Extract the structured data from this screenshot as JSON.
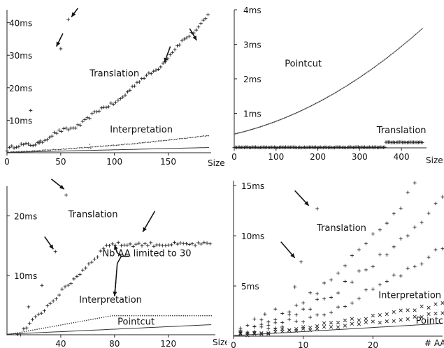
{
  "chart_data": [
    {
      "type": "scatter",
      "xlabel": "Size",
      "ylabel": "",
      "xlim": [
        0,
        190
      ],
      "ylim": [
        0,
        44
      ],
      "x_ticks": [
        {
          "v": 0,
          "label": "0"
        },
        {
          "v": 50,
          "label": "50"
        },
        {
          "v": 100,
          "label": "100"
        },
        {
          "v": 150,
          "label": "150"
        }
      ],
      "y_ticks": [
        {
          "v": 10,
          "label": "10ms"
        },
        {
          "v": 20,
          "label": "20ms"
        },
        {
          "v": 30,
          "label": "30ms"
        },
        {
          "v": 40,
          "label": "40ms"
        }
      ],
      "series": [
        {
          "name": "Translation",
          "marker": "plus",
          "gen": "curve",
          "from": 0,
          "to": 188,
          "step": 2.2,
          "k": [
            0.95,
            0.063,
            0.00085
          ],
          "jitter": 0.5,
          "steps": 1,
          "outliers": [
            [
              57,
              41
            ],
            [
              50,
              32
            ],
            [
              22,
              13
            ],
            [
              30,
              3
            ]
          ]
        },
        {
          "name": "Interpretation",
          "marker": "dot",
          "gen": "curve",
          "from": 0,
          "to": 188,
          "step": 1.5,
          "k": [
            0.2,
            0.014,
            7e-05
          ],
          "jitter": 0.1,
          "outliers": [
            [
              76,
              1.5
            ],
            [
              77,
              2.6
            ],
            [
              78,
              1.4
            ]
          ]
        },
        {
          "name": "Pointcut",
          "marker": "line",
          "gen": "curve",
          "from": 0,
          "to": 188,
          "step": 4,
          "k": [
            0.1,
            0.008,
            0
          ]
        }
      ],
      "annotations": [
        {
          "text": "Translation",
          "x": 100,
          "y": 23.5
        },
        {
          "text": "Interpretation",
          "x": 125,
          "y": 6.2
        }
      ],
      "arrows": [
        [
          66,
          44.5,
          60,
          41.8
        ],
        [
          52,
          36.7,
          46,
          32.7
        ],
        [
          152,
          32.7,
          146.5,
          27.8
        ],
        [
          170,
          38.2,
          176.5,
          34.6
        ]
      ]
    },
    {
      "type": "scatter",
      "xlabel": "Size",
      "ylabel": "",
      "xlim": [
        0,
        460
      ],
      "ylim": [
        0,
        4
      ],
      "x_ticks": [
        {
          "v": 0,
          "label": "0"
        },
        {
          "v": 100,
          "label": "100"
        },
        {
          "v": 200,
          "label": "200"
        },
        {
          "v": 300,
          "label": "300"
        },
        {
          "v": 400,
          "label": "400"
        }
      ],
      "y_ticks": [
        {
          "v": 1,
          "label": "1ms"
        },
        {
          "v": 2,
          "label": "2ms"
        },
        {
          "v": 3,
          "label": "3ms"
        },
        {
          "v": 4,
          "label": "4ms"
        }
      ],
      "series": [
        {
          "name": "Pointcut",
          "marker": "dot",
          "gen": "curve",
          "from": 0,
          "to": 452,
          "step": 2.6,
          "k": [
            0.4,
            0.00281,
            8.85e-06
          ]
        },
        {
          "name": "Translation",
          "marker": "plus",
          "gen": "piece",
          "from": 0,
          "to": 452,
          "step": 3,
          "split": 362,
          "low": 0.015,
          "high": 0.16,
          "jitter": 0.008
        }
      ],
      "annotations": [
        {
          "text": "Pointcut",
          "x": 165,
          "y": 2.35
        },
        {
          "text": "Translation",
          "x": 400,
          "y": 0.42
        }
      ],
      "arrows": []
    },
    {
      "type": "scatter",
      "xlabel": "Size",
      "ylabel": "",
      "xlim": [
        0,
        155
      ],
      "ylim": [
        0,
        25
      ],
      "x_ticks": [
        {
          "v": 40,
          "label": "40"
        },
        {
          "v": 80,
          "label": "80"
        },
        {
          "v": 120,
          "label": "120"
        }
      ],
      "y_ticks": [
        {
          "v": 10,
          "label": "10ms"
        },
        {
          "v": 20,
          "label": "20ms"
        }
      ],
      "series": [
        {
          "name": "Translation",
          "marker": "plus",
          "gen": "piece",
          "from": 8,
          "to": 152,
          "step": 2.2,
          "split": 74,
          "slope": [
            -2.1,
            0.23
          ],
          "high": 15.2,
          "jitter": 0.35,
          "outliers": [
            [
              44,
              23.5
            ],
            [
              36,
              14
            ],
            [
              26,
              8.3
            ],
            [
              16,
              4.7
            ]
          ]
        },
        {
          "name": "Interpretation",
          "marker": "dot",
          "gen": "piece",
          "from": 0,
          "to": 152,
          "step": 1.6,
          "split": 78,
          "slope": [
            0,
            0.041
          ],
          "high": 3.2
        },
        {
          "name": "Pointcut",
          "marker": "line",
          "gen": "curve",
          "from": 0,
          "to": 152,
          "step": 4,
          "k": [
            0.1,
            0.0105,
            0
          ]
        }
      ],
      "annotations": [
        {
          "text": "Translation",
          "x": 64,
          "y": 19.8
        },
        {
          "text": "Nb AA limited to 30",
          "x": 104,
          "y": 13.2
        },
        {
          "text": "Interpretation",
          "x": 77,
          "y": 5.4
        },
        {
          "text": "Pointcut",
          "x": 96,
          "y": 1.7
        }
      ],
      "arrows": [
        [
          33,
          26.2,
          42.5,
          24.5
        ],
        [
          28,
          16.5,
          34.5,
          14.4
        ],
        [
          110,
          20.8,
          101,
          17.3
        ]
      ],
      "annotation_lines": [
        [
          [
            91,
            13.2
          ],
          [
            85,
            13.2
          ],
          [
            82,
            13.8
          ],
          [
            80,
            15.1
          ]
        ],
        [
          [
            85,
            13.2
          ],
          [
            82,
            12
          ],
          [
            81,
            9
          ],
          [
            80,
            6.5
          ]
        ]
      ]
    },
    {
      "type": "scatter",
      "xlabel": "# AA",
      "ylabel": "",
      "xlim": [
        0,
        30
      ],
      "ylim": [
        0,
        15.5
      ],
      "x_ticks": [
        {
          "v": 0,
          "label": "0"
        },
        {
          "v": 10,
          "label": "10"
        },
        {
          "v": 20,
          "label": "20"
        }
      ],
      "y_ticks": [
        {
          "v": 5,
          "label": "5ms"
        },
        {
          "v": 10,
          "label": "10ms"
        },
        {
          "v": 15,
          "label": "15ms"
        }
      ],
      "series": [
        {
          "name": "Translation",
          "marker": "plus",
          "gen": "curve",
          "from": 1,
          "to": 30,
          "step": 1,
          "k": [
            0.3,
            0.14,
            0.0114
          ],
          "jitter": 0.4,
          "copies": 3,
          "spread": [
            0.6,
            1.28
          ],
          "outliers": [
            [
              12,
              12.7
            ],
            [
              9.7,
              7.4
            ],
            [
              8.8,
              4.9
            ],
            [
              3,
              1.7
            ],
            [
              4.5,
              2.2
            ],
            [
              6,
              2.7
            ],
            [
              1,
              0.6
            ]
          ]
        },
        {
          "name": "Interpretation",
          "marker": "x",
          "gen": "curve",
          "from": 1,
          "to": 30,
          "step": 1,
          "k": [
            0.08,
            0.055,
            0.00115
          ],
          "jitter": 0.15,
          "copies": 2,
          "spread": [
            0.82,
            1.18
          ]
        },
        {
          "name": "Pointcut",
          "marker": "line",
          "gen": "curve",
          "from": 0,
          "to": 30,
          "step": 1,
          "k": [
            0.05,
            0.0405,
            0
          ]
        }
      ],
      "annotations": [
        {
          "text": "Translation",
          "x": 15.5,
          "y": 10.5
        },
        {
          "text": "Interpretation",
          "x": 25.3,
          "y": 3.8
        },
        {
          "text": "Pointcut",
          "x": 28.8,
          "y": 1.25
        }
      ],
      "arrows": [
        [
          8.8,
          14.5,
          10.8,
          13
        ],
        [
          6.8,
          9.4,
          8.8,
          7.8
        ]
      ]
    }
  ]
}
